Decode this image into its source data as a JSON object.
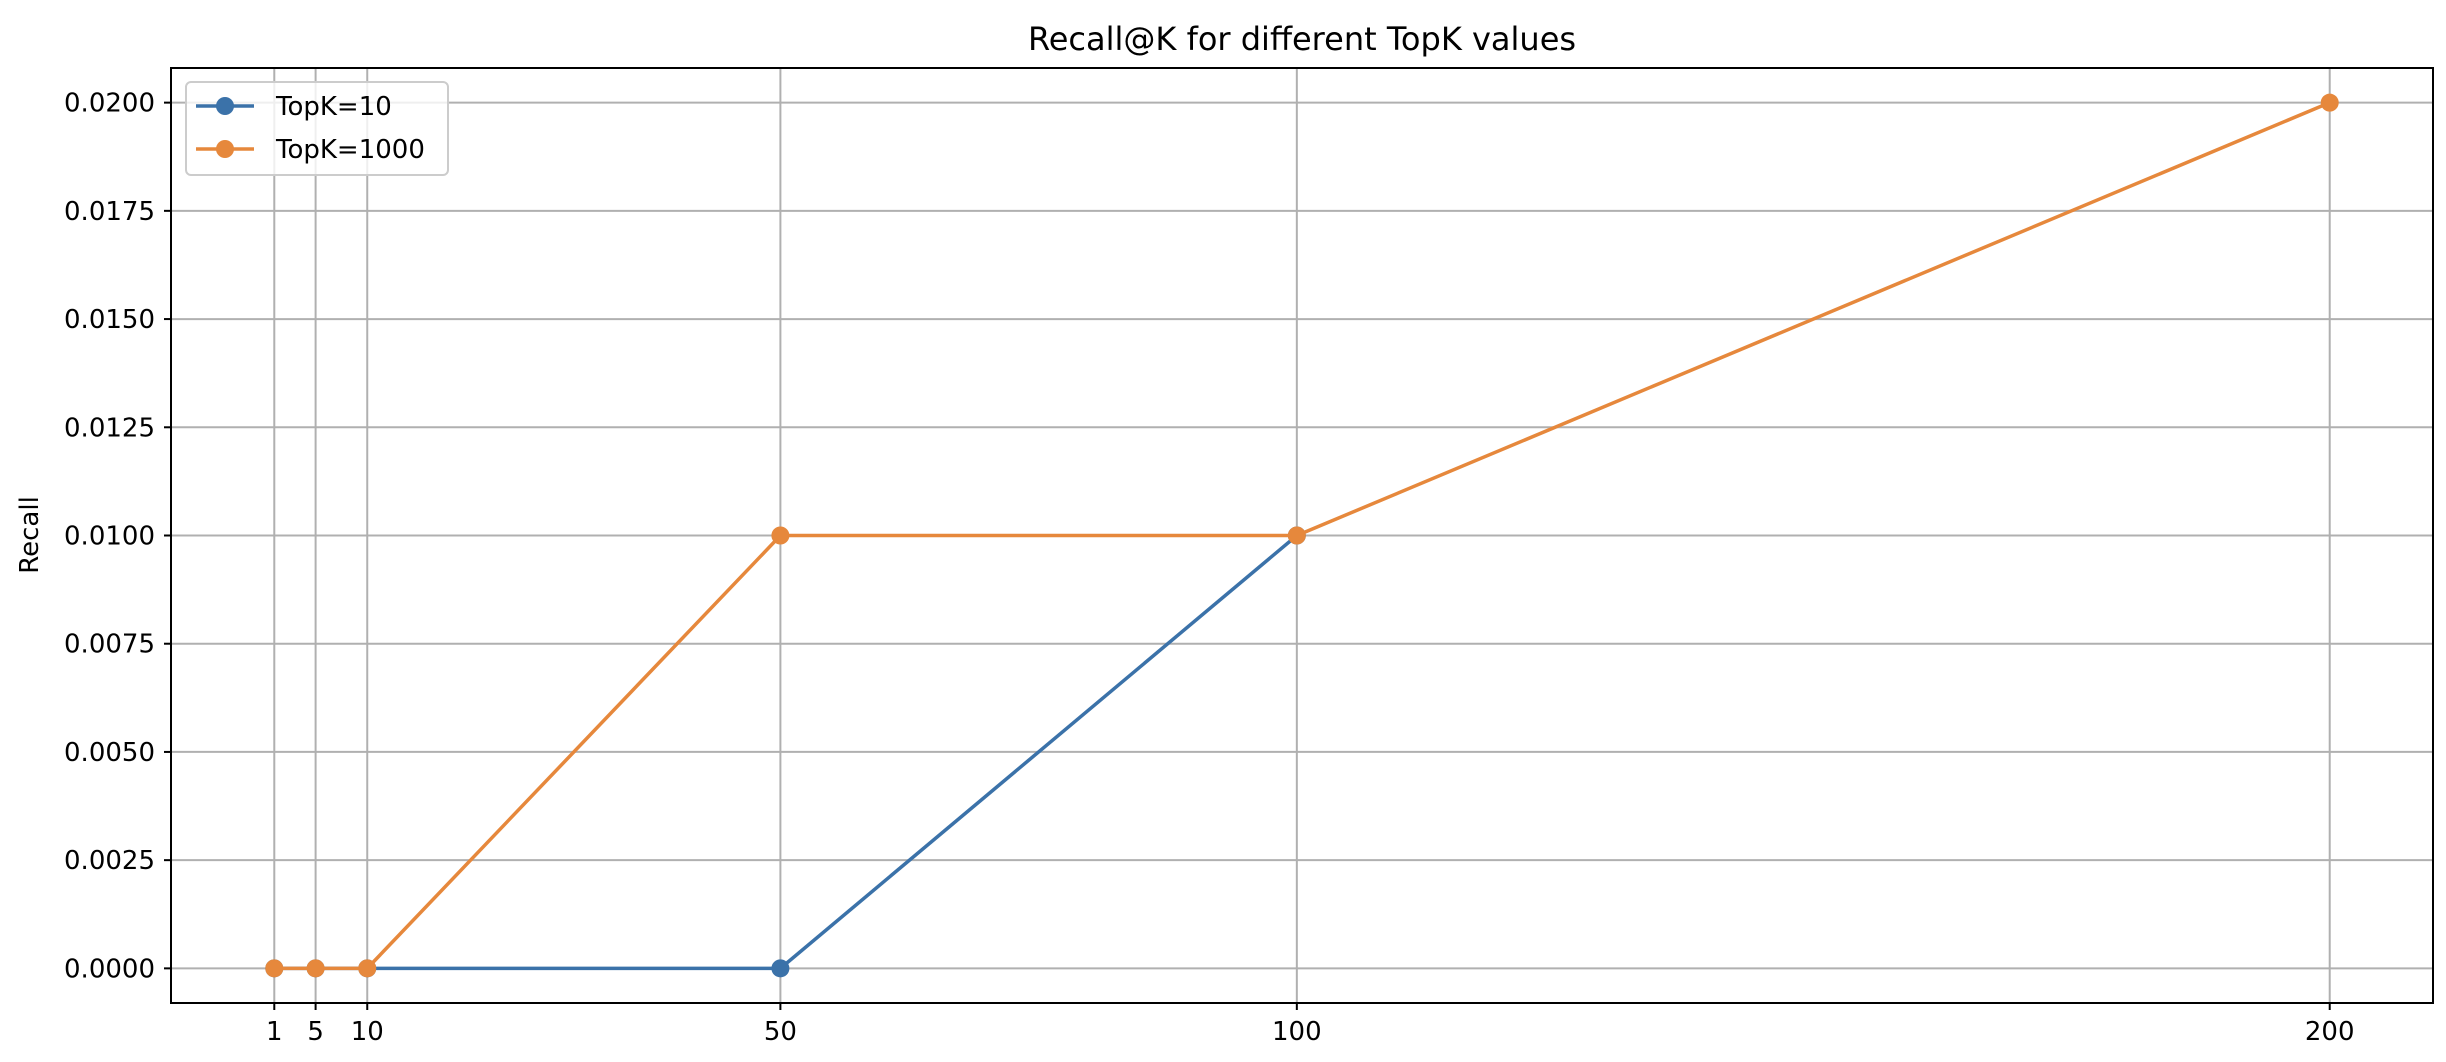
{
  "chart_data": {
    "type": "line",
    "title": "Recall@K for different TopK values",
    "xlabel": "K",
    "ylabel": "Recall",
    "x": [
      1,
      5,
      10,
      50,
      100,
      200
    ],
    "x_tick_labels": [
      "1",
      "5",
      "10",
      "50",
      "100",
      "200"
    ],
    "xlim": [
      -9,
      210
    ],
    "ylim": [
      -0.0008,
      0.0208
    ],
    "y_ticks": [
      0.0,
      0.0025,
      0.005,
      0.0075,
      0.01,
      0.0125,
      0.015,
      0.0175,
      0.02
    ],
    "y_tick_labels": [
      "0.0000",
      "0.0025",
      "0.0050",
      "0.0075",
      "0.0100",
      "0.0125",
      "0.0150",
      "0.0175",
      "0.0200"
    ],
    "grid": true,
    "legend_position": "top-left",
    "series": [
      {
        "name": "TopK=10",
        "color": "#3b72a9",
        "marker": "circle",
        "x": [
          1,
          5,
          10,
          50,
          100
        ],
        "values": [
          0.0,
          0.0,
          0.0,
          0.0,
          0.01
        ]
      },
      {
        "name": "TopK=1000",
        "color": "#e6883c",
        "marker": "circle",
        "x": [
          1,
          5,
          10,
          50,
          100,
          200
        ],
        "values": [
          0.0,
          0.0,
          0.0,
          0.01,
          0.01,
          0.02
        ]
      }
    ]
  }
}
